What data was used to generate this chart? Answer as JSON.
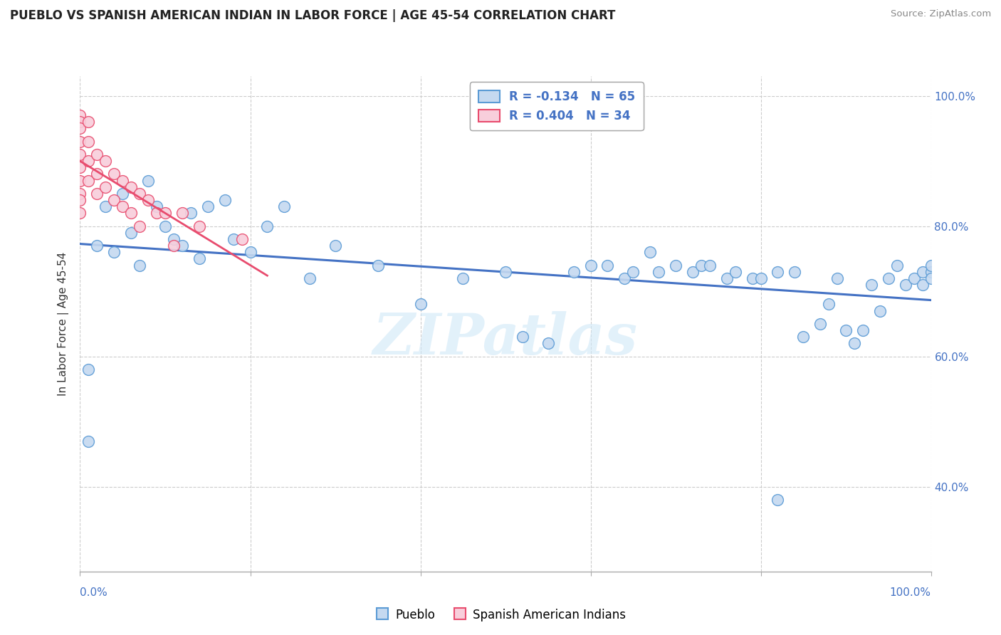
{
  "title": "PUEBLO VS SPANISH AMERICAN INDIAN IN LABOR FORCE | AGE 45-54 CORRELATION CHART",
  "source": "Source: ZipAtlas.com",
  "ylabel": "In Labor Force | Age 45-54",
  "r_blue": -0.134,
  "n_blue": 65,
  "r_pink": 0.404,
  "n_pink": 34,
  "blue_fill": "#c5d9f0",
  "blue_edge": "#5b9bd5",
  "pink_fill": "#f8cedb",
  "pink_edge": "#e84c6e",
  "blue_line_color": "#4472c4",
  "pink_line_color": "#e84c6e",
  "legend_blue_label": "Pueblo",
  "legend_pink_label": "Spanish American Indians",
  "watermark": "ZIPatlas",
  "blue_scatter_x": [
    0.01,
    0.01,
    0.02,
    0.03,
    0.04,
    0.05,
    0.06,
    0.07,
    0.08,
    0.09,
    0.1,
    0.11,
    0.12,
    0.13,
    0.14,
    0.15,
    0.17,
    0.18,
    0.2,
    0.22,
    0.24,
    0.27,
    0.3,
    0.35,
    0.4,
    0.45,
    0.5,
    0.52,
    0.55,
    0.58,
    0.6,
    0.62,
    0.64,
    0.65,
    0.67,
    0.68,
    0.7,
    0.72,
    0.73,
    0.74,
    0.76,
    0.77,
    0.79,
    0.8,
    0.82,
    0.84,
    0.85,
    0.87,
    0.88,
    0.89,
    0.9,
    0.91,
    0.92,
    0.93,
    0.94,
    0.95,
    0.96,
    0.97,
    0.98,
    0.99,
    0.99,
    1.0,
    1.0,
    1.0,
    0.82
  ],
  "blue_scatter_y": [
    0.58,
    0.47,
    0.77,
    0.83,
    0.76,
    0.85,
    0.79,
    0.74,
    0.87,
    0.83,
    0.8,
    0.78,
    0.77,
    0.82,
    0.75,
    0.83,
    0.84,
    0.78,
    0.76,
    0.8,
    0.83,
    0.72,
    0.77,
    0.74,
    0.68,
    0.72,
    0.73,
    0.63,
    0.62,
    0.73,
    0.74,
    0.74,
    0.72,
    0.73,
    0.76,
    0.73,
    0.74,
    0.73,
    0.74,
    0.74,
    0.72,
    0.73,
    0.72,
    0.72,
    0.73,
    0.73,
    0.63,
    0.65,
    0.68,
    0.72,
    0.64,
    0.62,
    0.64,
    0.71,
    0.67,
    0.72,
    0.74,
    0.71,
    0.72,
    0.73,
    0.71,
    0.73,
    0.72,
    0.74,
    0.38
  ],
  "pink_scatter_x": [
    0.0,
    0.0,
    0.0,
    0.0,
    0.0,
    0.0,
    0.0,
    0.0,
    0.0,
    0.0,
    0.01,
    0.01,
    0.01,
    0.01,
    0.02,
    0.02,
    0.02,
    0.03,
    0.03,
    0.04,
    0.04,
    0.05,
    0.05,
    0.06,
    0.06,
    0.07,
    0.07,
    0.08,
    0.09,
    0.1,
    0.11,
    0.12,
    0.14,
    0.19
  ],
  "pink_scatter_y": [
    0.97,
    0.96,
    0.95,
    0.93,
    0.91,
    0.89,
    0.87,
    0.85,
    0.84,
    0.82,
    0.96,
    0.93,
    0.9,
    0.87,
    0.91,
    0.88,
    0.85,
    0.9,
    0.86,
    0.88,
    0.84,
    0.87,
    0.83,
    0.86,
    0.82,
    0.85,
    0.8,
    0.84,
    0.82,
    0.82,
    0.77,
    0.82,
    0.8,
    0.78
  ],
  "xlim": [
    0.0,
    1.0
  ],
  "ylim": [
    0.27,
    1.03
  ],
  "yticks": [
    0.4,
    0.6,
    0.8,
    1.0
  ],
  "ytick_labels": [
    "40.0%",
    "60.0%",
    "80.0%",
    "100.0%"
  ],
  "xtick_positions": [
    0.0,
    0.2,
    0.4,
    0.6,
    0.8,
    1.0
  ]
}
